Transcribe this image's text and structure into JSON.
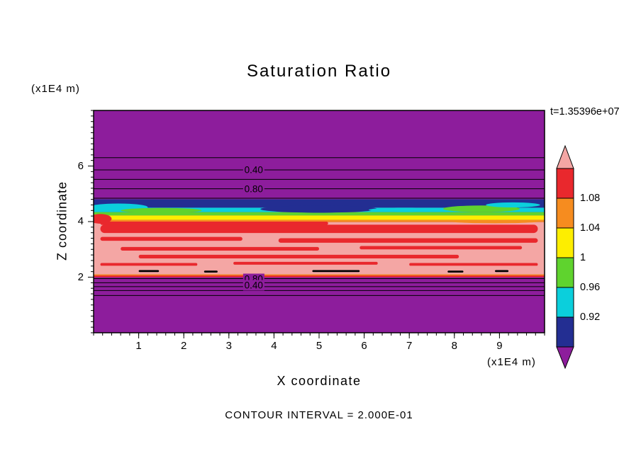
{
  "page": {
    "background": "#ffffff"
  },
  "chart_data": {
    "type": "heatmap",
    "variant": "filled contour plot with line contours",
    "title": "Saturation Ratio",
    "timestamp_label": "t=1.35396e+07",
    "xlabel": "X coordinate",
    "ylabel": "Z coordinate",
    "x_unit_label": "(x1E4 m)",
    "y_unit_label": "(x1E4 m)",
    "footer": "CONTOUR INTERVAL = 2.000E-01",
    "xlim": [
      0,
      10
    ],
    "zlim": [
      0,
      8
    ],
    "x_ticks": [
      1,
      2,
      3,
      4,
      5,
      6,
      7,
      8,
      9
    ],
    "z_ticks": [
      2,
      4,
      6
    ],
    "minor_tick_step_x": 0.2,
    "minor_tick_step_z": 0.2,
    "background_fill": "purple",
    "colors": {
      "purple": "#8d1d9c",
      "navy": "#232e92",
      "cyan": "#0bcfdc",
      "green": "#5fd32e",
      "yellow": "#fdee00",
      "orange": "#f68c1f",
      "red": "#e9282d",
      "salmon": "#f4a6a4",
      "black": "#000000"
    },
    "bands": [
      {
        "color": "navy",
        "z_top": 4.8,
        "z_bottom": 4.5
      },
      {
        "color": "cyan",
        "z_top": 4.5,
        "z_bottom": 4.34
      },
      {
        "color": "green",
        "z_top": 4.34,
        "z_bottom": 4.22
      },
      {
        "color": "yellow",
        "z_top": 4.22,
        "z_bottom": 4.06
      },
      {
        "color": "orange",
        "z_top": 4.06,
        "z_bottom": 3.98
      },
      {
        "color": "salmon",
        "z_top": 3.98,
        "z_bottom": 2.1
      },
      {
        "color": "orange",
        "z_top": 2.1,
        "z_bottom": 2.02
      },
      {
        "color": "red",
        "z_top": 2.06,
        "z_bottom": 2.0
      }
    ],
    "patches": [
      {
        "x": 0.55,
        "z": 4.52,
        "w": 1.3,
        "h": 0.26,
        "color": "cyan"
      },
      {
        "x": 1.5,
        "z": 4.4,
        "w": 1.8,
        "h": 0.18,
        "color": "green"
      },
      {
        "x": 5.0,
        "z": 4.45,
        "w": 2.6,
        "h": 0.26,
        "color": "navy"
      },
      {
        "x": 6.9,
        "z": 4.42,
        "w": 1.6,
        "h": 0.16,
        "color": "cyan"
      },
      {
        "x": 8.6,
        "z": 4.46,
        "w": 1.7,
        "h": 0.24,
        "color": "green"
      },
      {
        "x": 9.3,
        "z": 4.6,
        "w": 1.2,
        "h": 0.18,
        "color": "cyan"
      },
      {
        "x": 0.15,
        "z": 4.1,
        "w": 0.5,
        "h": 0.35,
        "color": "red"
      },
      {
        "x": 8.9,
        "z": 4.0,
        "w": 1.9,
        "h": 0.12,
        "color": "orange"
      }
    ],
    "streaks": [
      {
        "x1": 0.15,
        "x2": 9.85,
        "z": 3.74,
        "h": 0.3,
        "color": "red"
      },
      {
        "x1": 0.15,
        "x2": 5.2,
        "z": 3.94,
        "h": 0.12,
        "color": "red"
      },
      {
        "x1": 0.15,
        "x2": 3.3,
        "z": 3.38,
        "h": 0.14,
        "color": "red"
      },
      {
        "x1": 4.1,
        "x2": 9.85,
        "z": 3.32,
        "h": 0.16,
        "color": "red"
      },
      {
        "x1": 0.6,
        "x2": 5.0,
        "z": 3.02,
        "h": 0.13,
        "color": "red"
      },
      {
        "x1": 5.9,
        "x2": 9.5,
        "z": 3.06,
        "h": 0.12,
        "color": "red"
      },
      {
        "x1": 1.0,
        "x2": 8.1,
        "z": 2.74,
        "h": 0.13,
        "color": "red"
      },
      {
        "x1": 0.15,
        "x2": 2.3,
        "z": 2.46,
        "h": 0.1,
        "color": "red"
      },
      {
        "x1": 3.1,
        "x2": 6.3,
        "z": 2.5,
        "h": 0.1,
        "color": "red"
      },
      {
        "x1": 7.0,
        "x2": 9.85,
        "z": 2.46,
        "h": 0.1,
        "color": "red"
      }
    ],
    "black_dashes": [
      {
        "x1": 1.0,
        "x2": 1.45,
        "z": 2.22
      },
      {
        "x1": 2.45,
        "x2": 2.75,
        "z": 2.2
      },
      {
        "x1": 4.85,
        "x2": 5.9,
        "z": 2.22
      },
      {
        "x1": 7.85,
        "x2": 8.2,
        "z": 2.2
      },
      {
        "x1": 8.9,
        "x2": 9.2,
        "z": 2.22
      }
    ],
    "contour_lines": [
      {
        "z": 6.3
      },
      {
        "z": 5.86
      },
      {
        "z": 5.52
      },
      {
        "z": 5.18
      },
      {
        "z": 4.84
      },
      {
        "z": 1.95
      },
      {
        "z": 1.8
      },
      {
        "z": 1.66
      },
      {
        "z": 1.52
      },
      {
        "z": 1.34
      }
    ],
    "contour_labels": [
      {
        "x": 3.55,
        "z": 5.86,
        "text": "0.40"
      },
      {
        "x": 3.55,
        "z": 5.18,
        "text": "0.80"
      },
      {
        "x": 3.55,
        "z": 1.93,
        "text": "0.80"
      },
      {
        "x": 3.55,
        "z": 1.7,
        "text": "0.40"
      }
    ],
    "colorbar": {
      "top_spike_color": "salmon",
      "bottom_spike_color": "purple",
      "blocks": [
        {
          "color": "red",
          "label": "1.08"
        },
        {
          "color": "orange",
          "label": "1.04"
        },
        {
          "color": "yellow",
          "label": "1"
        },
        {
          "color": "green",
          "label": "0.96"
        },
        {
          "color": "cyan",
          "label": "0.92"
        },
        {
          "color": "navy",
          "label": ""
        }
      ]
    }
  }
}
